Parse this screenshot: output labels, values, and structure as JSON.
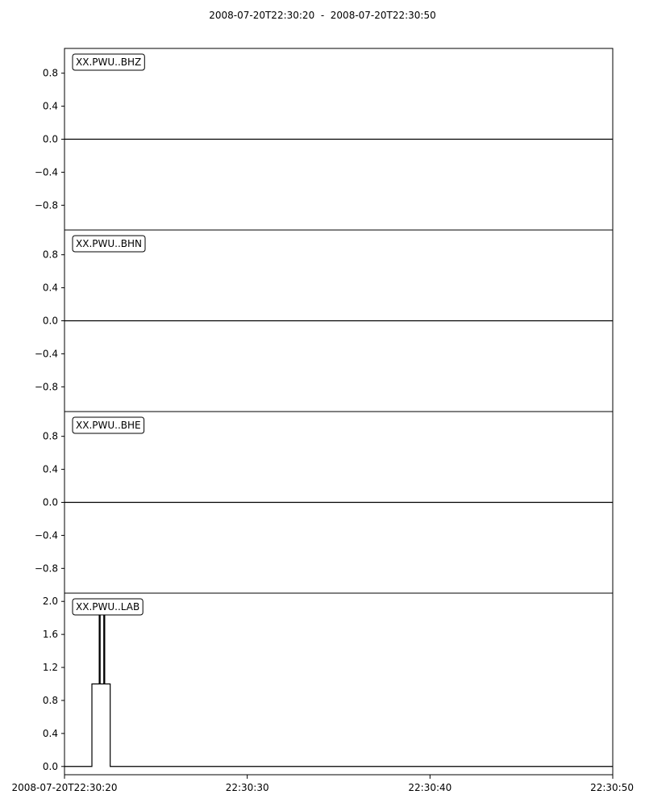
{
  "title": "2008-07-20T22:30:20  -  2008-07-20T22:30:50",
  "colors": {
    "trace": "#000000",
    "axes": "#000000",
    "background": "#ffffff"
  },
  "chart_data": [
    {
      "type": "line",
      "label": "XX.PWU..BHZ",
      "xlim": [
        0,
        30
      ],
      "ylim": [
        -1.1,
        1.1
      ],
      "y_ticks": [
        0.8,
        0.4,
        0.0,
        -0.4,
        -0.8
      ],
      "y_tick_labels": [
        "0.8",
        "0.4",
        "0.0",
        "−0.4",
        "−0.8"
      ],
      "series": [
        {
          "x": [
            0,
            30
          ],
          "y": [
            0.0,
            0.0
          ]
        }
      ]
    },
    {
      "type": "line",
      "label": "XX.PWU..BHN",
      "xlim": [
        0,
        30
      ],
      "ylim": [
        -1.1,
        1.1
      ],
      "y_ticks": [
        0.8,
        0.4,
        0.0,
        -0.4,
        -0.8
      ],
      "y_tick_labels": [
        "0.8",
        "0.4",
        "0.0",
        "−0.4",
        "−0.8"
      ],
      "series": [
        {
          "x": [
            0,
            30
          ],
          "y": [
            0.0,
            0.0
          ]
        }
      ]
    },
    {
      "type": "line",
      "label": "XX.PWU..BHE",
      "xlim": [
        0,
        30
      ],
      "ylim": [
        -1.1,
        1.1
      ],
      "y_ticks": [
        0.8,
        0.4,
        0.0,
        -0.4,
        -0.8
      ],
      "y_tick_labels": [
        "0.8",
        "0.4",
        "0.0",
        "−0.4",
        "−0.8"
      ],
      "series": [
        {
          "x": [
            0,
            30
          ],
          "y": [
            0.0,
            0.0
          ]
        }
      ]
    },
    {
      "type": "line",
      "label": "XX.PWU..LAB",
      "xlim": [
        0,
        30
      ],
      "ylim": [
        -0.1,
        2.1
      ],
      "y_ticks": [
        2.0,
        1.6,
        1.2,
        0.8,
        0.4,
        0.0
      ],
      "y_tick_labels": [
        "2.0",
        "1.6",
        "1.2",
        "0.8",
        "0.4",
        "0.0"
      ],
      "series": [
        {
          "x": [
            0,
            1.5,
            1.5,
            1.9,
            1.9,
            1.95,
            1.95,
            2.15,
            2.15,
            2.2,
            2.2,
            2.5,
            2.5,
            30
          ],
          "y": [
            0,
            0,
            1,
            1,
            2,
            2,
            1,
            1,
            2,
            2,
            1,
            1,
            0,
            0
          ]
        }
      ]
    }
  ],
  "x_axis": {
    "ticks": [
      0,
      10,
      20,
      30
    ],
    "tick_labels": [
      "2008-07-20T22:30:20",
      "22:30:30",
      "22:30:40",
      "22:30:50"
    ]
  }
}
